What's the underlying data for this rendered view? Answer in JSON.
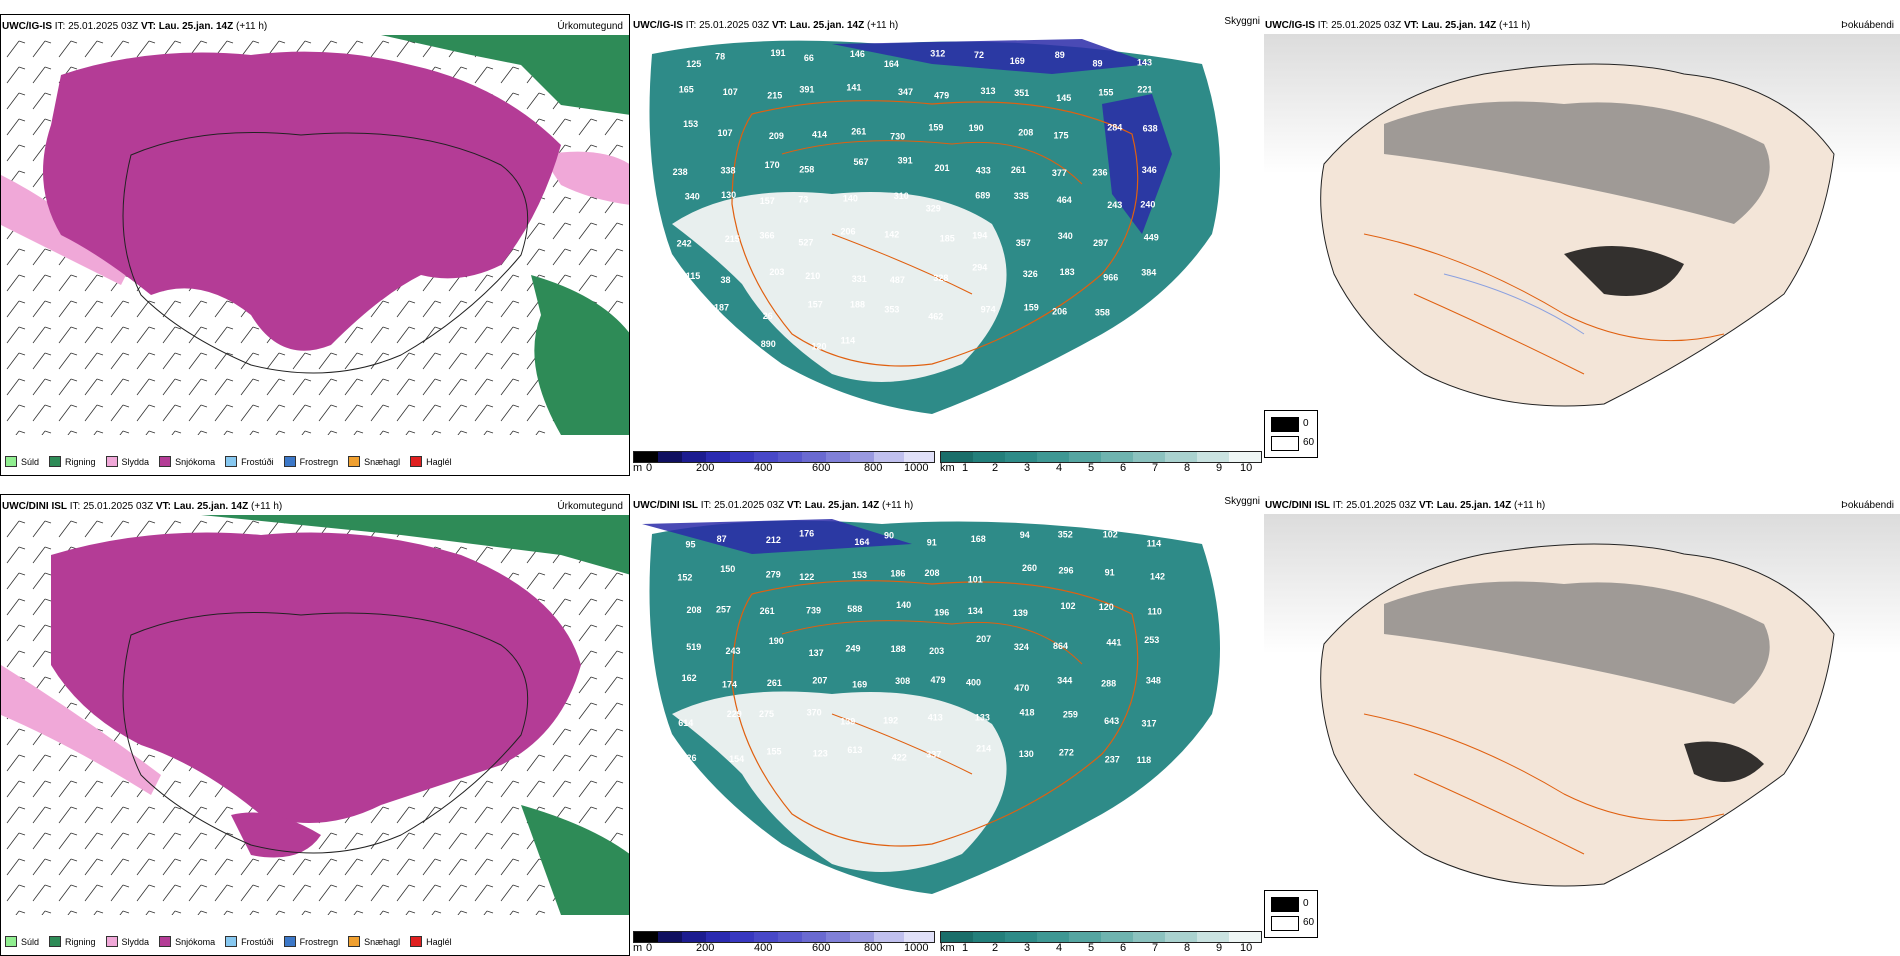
{
  "top": {
    "left_title": {
      "model": "UWC/IG-IS",
      "it": "IT: 25.01.2025 03Z",
      "vt_label": "VT:",
      "vt_value": "Lau. 25.jan. 14Z",
      "lead": "(+11 h)"
    },
    "left_param": "Úrkomutegund",
    "mid_title": {
      "model": "UWC/IG-IS",
      "it": "IT: 25.01.2025 03Z",
      "vt_label": "VT:",
      "vt_value": "Lau. 25.jan. 14Z",
      "lead": "(+11 h)"
    },
    "mid_param": "Skyggni",
    "right_title": {
      "model": "UWC/IG-IS",
      "it": "IT: 25.01.2025 03Z",
      "vt_label": "VT:",
      "vt_value": "Lau. 25.jan. 14Z",
      "lead": "(+11 h)"
    },
    "right_param": "Þokuábendi"
  },
  "bottom": {
    "left_title": {
      "model": "UWC/DINI ISL",
      "it": "IT: 25.01.2025 03Z",
      "vt_label": "VT:",
      "vt_value": "Lau. 25.jan. 14Z",
      "lead": "(+11 h)"
    },
    "left_param": "Úrkomutegund",
    "mid_title": {
      "model": "UWC/DINI ISL",
      "it": "IT: 25.01.2025 03Z",
      "vt_label": "VT:",
      "vt_value": "Lau. 25.jan. 14Z",
      "lead": "(+11 h)"
    },
    "mid_param": "Skyggni",
    "right_title": {
      "model": "UWC/DINI ISL",
      "it": "IT: 25.01.2025 03Z",
      "vt_label": "VT:",
      "vt_value": "Lau. 25.jan. 14Z",
      "lead": "(+11 h)"
    },
    "right_param": "Þokuábendi"
  },
  "precip_legend": [
    {
      "label": "Súld",
      "color": "#90ee90"
    },
    {
      "label": "Rigning",
      "color": "#2e8b57"
    },
    {
      "label": "Slydda",
      "color": "#f0a8d8"
    },
    {
      "label": "Snjókoma",
      "color": "#b43c96"
    },
    {
      "label": "Frostúði",
      "color": "#87c8f0"
    },
    {
      "label": "Frostregn",
      "color": "#3c78c8"
    },
    {
      "label": "Snæhagl",
      "color": "#f0a030"
    },
    {
      "label": "Haglél",
      "color": "#e02020"
    }
  ],
  "ceiling_scale": {
    "unit": "m",
    "ticks": [
      "0",
      "200",
      "400",
      "600",
      "800",
      "1000"
    ]
  },
  "visibility_scale": {
    "unit": "km",
    "ticks": [
      "1",
      "2",
      "3",
      "4",
      "5",
      "6",
      "7",
      "8",
      "9",
      "10"
    ]
  },
  "fog_legend": {
    "low": "0",
    "high": "60"
  },
  "top_labels": [
    "125",
    "78",
    "191",
    "66",
    "146",
    "164",
    "312",
    "72",
    "169",
    "89",
    "89",
    "143",
    "165",
    "107",
    "215",
    "391",
    "141",
    "347",
    "479",
    "313",
    "351",
    "145",
    "155",
    "221",
    "153",
    "107",
    "209",
    "414",
    "261",
    "730",
    "159",
    "190",
    "208",
    "175",
    "284",
    "638",
    "238",
    "338",
    "170",
    "258",
    "567",
    "391",
    "201",
    "433",
    "261",
    "377",
    "236",
    "346",
    "340",
    "130",
    "157",
    "73",
    "140",
    "310",
    "329",
    "689",
    "335",
    "464",
    "243",
    "240",
    "242",
    "215",
    "366",
    "527",
    "206",
    "142",
    "185",
    "194",
    "357",
    "340",
    "297",
    "449",
    "115",
    "38",
    "203",
    "210",
    "331",
    "487",
    "328",
    "294",
    "326",
    "183",
    "966",
    "384",
    "332",
    "187",
    "26",
    "157",
    "188",
    "353",
    "462",
    "974",
    "159",
    "206",
    "358",
    "190",
    "168",
    "278",
    "890",
    "120",
    "114"
  ],
  "bottom_labels": [
    "95",
    "87",
    "212",
    "176",
    "164",
    "90",
    "91",
    "168",
    "94",
    "352",
    "102",
    "114",
    "152",
    "150",
    "279",
    "122",
    "153",
    "186",
    "208",
    "101",
    "260",
    "296",
    "91",
    "142",
    "208",
    "257",
    "261",
    "739",
    "588",
    "140",
    "196",
    "134",
    "139",
    "102",
    "120",
    "110",
    "519",
    "243",
    "190",
    "137",
    "249",
    "188",
    "203",
    "207",
    "324",
    "864",
    "441",
    "253",
    "162",
    "174",
    "261",
    "207",
    "169",
    "308",
    "479",
    "400",
    "470",
    "344",
    "288",
    "348",
    "614",
    "229",
    "275",
    "370",
    "139",
    "192",
    "413",
    "133",
    "418",
    "259",
    "643",
    "317",
    "326",
    "154",
    "155",
    "123",
    "613",
    "422",
    "337",
    "214",
    "130",
    "272",
    "237",
    "118"
  ]
}
